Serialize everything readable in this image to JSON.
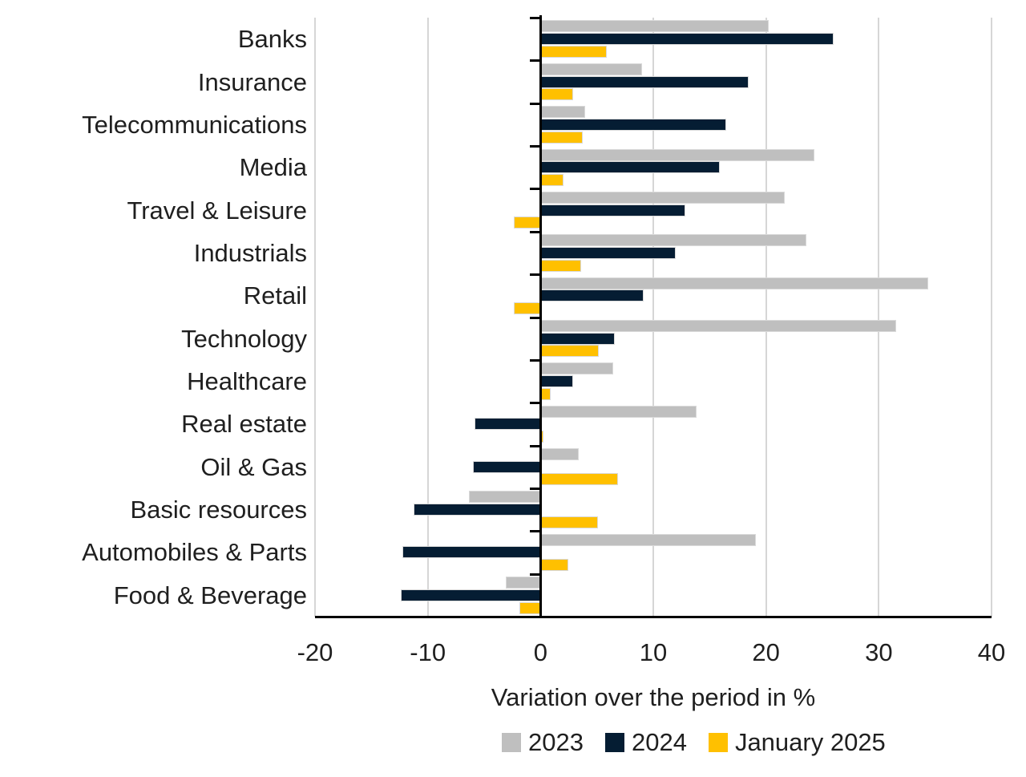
{
  "chart_data": {
    "type": "bar",
    "orientation": "horizontal",
    "xlabel": "Variation over the period in %",
    "xlim": [
      -20,
      40
    ],
    "xticks": [
      -20,
      -10,
      0,
      10,
      20,
      30,
      40
    ],
    "grid": "vertical",
    "legend_position": "bottom",
    "categories": [
      "Banks",
      "Insurance",
      "Telecommunications",
      "Media",
      "Travel & Leisure",
      "Industrials",
      "Retail",
      "Technology",
      "Healthcare",
      "Real estate",
      "Oil & Gas",
      "Basic resources",
      "Automobiles & Parts",
      "Food & Beverage"
    ],
    "series": [
      {
        "name": "2023",
        "color": "#bfbfbf",
        "values": [
          20.2,
          8.9,
          3.9,
          24.2,
          21.6,
          23.5,
          34.3,
          31.5,
          6.4,
          13.8,
          3.3,
          -6.3,
          19.0,
          -3.0
        ]
      },
      {
        "name": "2024",
        "color": "#051d33",
        "values": [
          25.9,
          18.4,
          16.4,
          15.8,
          12.8,
          11.9,
          9.1,
          6.5,
          2.8,
          -5.8,
          -5.9,
          -11.2,
          -12.2,
          -12.3
        ]
      },
      {
        "name": "January 2025",
        "color": "#ffc000",
        "values": [
          5.8,
          2.8,
          3.7,
          2.0,
          -2.3,
          3.5,
          -2.3,
          5.1,
          0.8,
          0.2,
          6.8,
          5.0,
          2.4,
          -1.8
        ]
      }
    ]
  },
  "colors": {
    "background": "#ffffff",
    "gridline": "#d6d6d6",
    "axis": "#000000",
    "text": "#1f1f1f"
  }
}
